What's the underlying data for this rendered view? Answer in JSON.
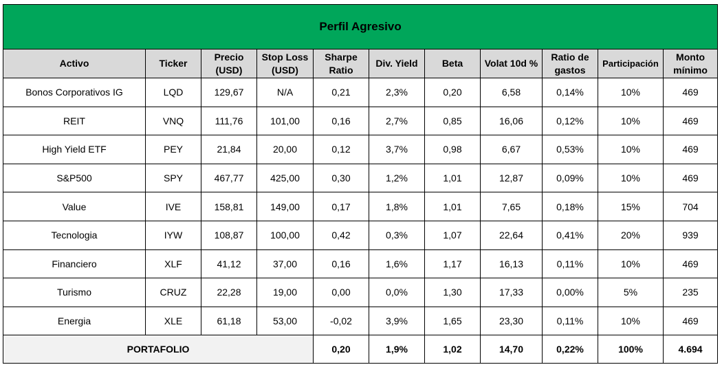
{
  "title": "Perfil Agresivo",
  "headers": [
    "Activo",
    "Ticker",
    "Precio (USD)",
    "Stop Loss (USD)",
    "Sharpe Ratio",
    "Div. Yield",
    "Beta",
    "Volat 10d %",
    "Ratio de gastos",
    "Participación",
    "Monto mínimo"
  ],
  "rows": [
    [
      "Bonos Corporativos IG",
      "LQD",
      "129,67",
      "N/A",
      "0,21",
      "2,3%",
      "0,20",
      "6,58",
      "0,14%",
      "10%",
      "469"
    ],
    [
      "REIT",
      "VNQ",
      "111,76",
      "101,00",
      "0,16",
      "2,7%",
      "0,85",
      "16,06",
      "0,12%",
      "10%",
      "469"
    ],
    [
      "High Yield ETF",
      "PEY",
      "21,84",
      "20,00",
      "0,12",
      "3,7%",
      "0,98",
      "6,67",
      "0,53%",
      "10%",
      "469"
    ],
    [
      "S&P500",
      "SPY",
      "467,77",
      "425,00",
      "0,30",
      "1,2%",
      "1,01",
      "12,87",
      "0,09%",
      "10%",
      "469"
    ],
    [
      "Value",
      "IVE",
      "158,81",
      "149,00",
      "0,17",
      "1,8%",
      "1,01",
      "7,65",
      "0,18%",
      "15%",
      "704"
    ],
    [
      "Tecnologia",
      "IYW",
      "108,87",
      "100,00",
      "0,42",
      "0,3%",
      "1,07",
      "22,64",
      "0,41%",
      "20%",
      "939"
    ],
    [
      "Financiero",
      "XLF",
      "41,12",
      "37,00",
      "0,16",
      "1,6%",
      "1,17",
      "16,13",
      "0,11%",
      "10%",
      "469"
    ],
    [
      "Turismo",
      "CRUZ",
      "22,28",
      "19,00",
      "0,00",
      "0,0%",
      "1,30",
      "17,33",
      "0,00%",
      "5%",
      "235"
    ],
    [
      "Energia",
      "XLE",
      "61,18",
      "53,00",
      "-0,02",
      "3,9%",
      "1,65",
      "23,30",
      "0,11%",
      "10%",
      "469"
    ]
  ],
  "total": {
    "label": "PORTAFOLIO",
    "values": [
      "0,20",
      "1,9%",
      "1,02",
      "14,70",
      "0,22%",
      "100%",
      "4.694"
    ]
  },
  "colors": {
    "title_bg": "#00a65a",
    "header_bg": "#d9d9d9"
  }
}
